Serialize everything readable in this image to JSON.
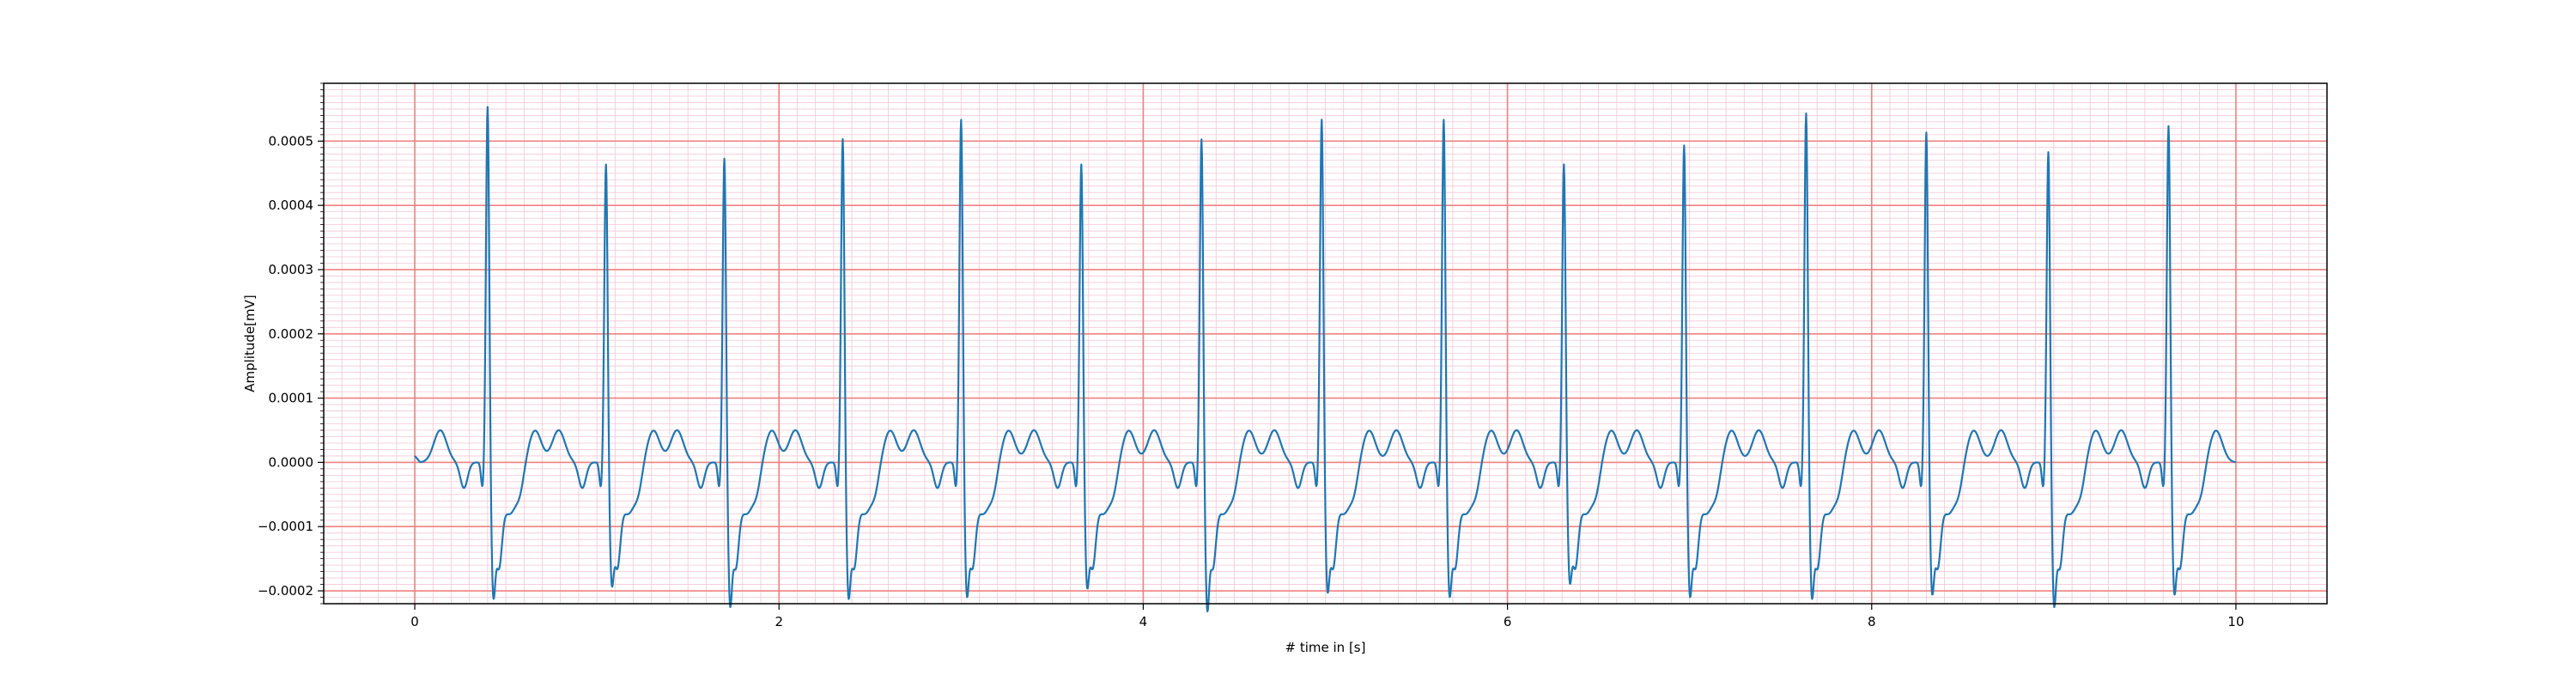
{
  "chart_data": {
    "type": "line",
    "title": "",
    "xlabel": "# time in [s]",
    "ylabel": "Amplitude[mV]",
    "xlim": [
      -0.5,
      10.5
    ],
    "ylim": [
      -0.00022,
      0.00059
    ],
    "xticks": [
      0,
      2,
      4,
      6,
      8,
      10
    ],
    "xtick_labels": [
      "0",
      "2",
      "4",
      "6",
      "8",
      "10"
    ],
    "yticks": [
      -0.0002,
      -0.0001,
      0.0,
      0.0001,
      0.0002,
      0.0003,
      0.0004,
      0.0005
    ],
    "ytick_labels": [
      "−0.0002",
      "−0.0001",
      "0.0000",
      "0.0001",
      "0.0002",
      "0.0003",
      "0.0004",
      "0.0005"
    ],
    "grid": {
      "major": true,
      "minor": true,
      "major_color": "#f08080",
      "minor_color": "#f5c6d6"
    },
    "line_color": "#1f77b4",
    "x_end": 10.0,
    "beats": [
      {
        "t": 0.4,
        "r": 0.00056,
        "s": -0.000165
      },
      {
        "t": 1.05,
        "r": 0.00047,
        "s": -0.000145
      },
      {
        "t": 1.7,
        "r": 0.00048,
        "s": -0.000178
      },
      {
        "t": 2.35,
        "r": 0.00051,
        "s": -0.000165
      },
      {
        "t": 3.0,
        "r": 0.00054,
        "s": -0.000162
      },
      {
        "t": 3.66,
        "r": 0.00047,
        "s": -0.000148
      },
      {
        "t": 4.32,
        "r": 0.00051,
        "s": -0.000185
      },
      {
        "t": 4.98,
        "r": 0.00054,
        "s": -0.000155
      },
      {
        "t": 5.65,
        "r": 0.00054,
        "s": -0.000162
      },
      {
        "t": 6.31,
        "r": 0.00047,
        "s": -0.00014
      },
      {
        "t": 6.97,
        "r": 0.0005,
        "s": -0.000162
      },
      {
        "t": 7.64,
        "r": 0.00055,
        "s": -0.000165
      },
      {
        "t": 8.3,
        "r": 0.00052,
        "s": -0.000158
      },
      {
        "t": 8.97,
        "r": 0.00049,
        "s": -0.000178
      },
      {
        "t": 9.63,
        "r": 0.00053,
        "s": -0.000158
      }
    ]
  }
}
